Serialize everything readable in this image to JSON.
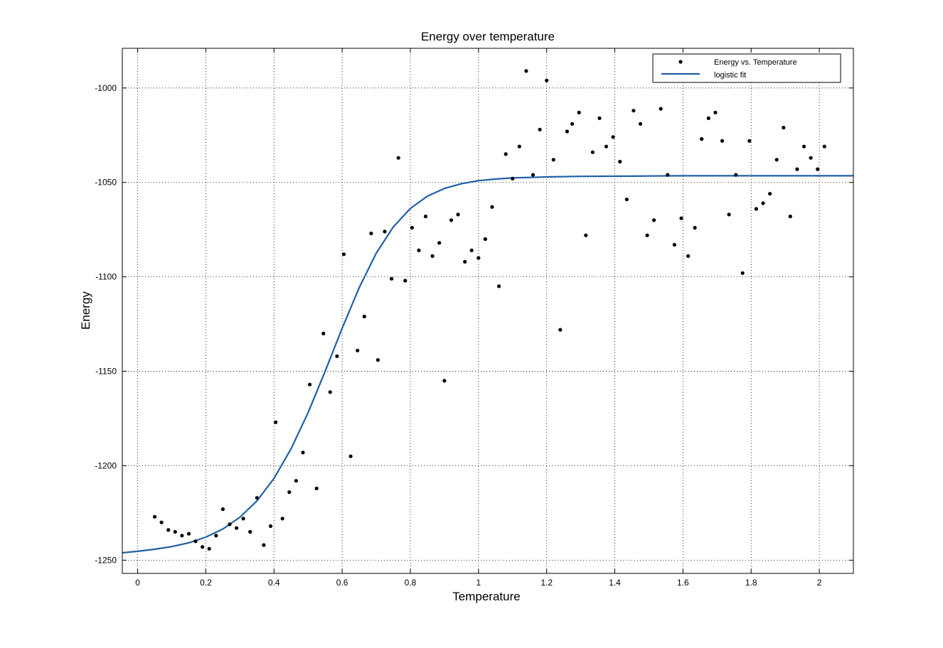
{
  "chart_data": {
    "type": "scatter",
    "title": "Energy over temperature",
    "xlabel": "Temperature",
    "ylabel": "Energy",
    "xlim": [
      -0.045,
      2.1
    ],
    "ylim": [
      -1257,
      -979
    ],
    "xticks": [
      0,
      0.2,
      0.4,
      0.6,
      0.8,
      1,
      1.2,
      1.4,
      1.6,
      1.8,
      2
    ],
    "xtick_labels": [
      "0",
      "0.2",
      "0.4",
      "0.6",
      "0.8",
      "1",
      "1.2",
      "1.4",
      "1.6",
      "1.8",
      "2"
    ],
    "yticks": [
      -1250,
      -1200,
      -1150,
      -1100,
      -1050,
      -1000
    ],
    "ytick_labels": [
      "-1250",
      "-1200",
      "-1150",
      "-1100",
      "-1050",
      "-1000"
    ],
    "grid": true,
    "legend_position": "top-right",
    "series": [
      {
        "name": "Energy vs. Temperature",
        "kind": "scatter",
        "color": "#000000",
        "points": [
          [
            0.05,
            -1227
          ],
          [
            0.07,
            -1230
          ],
          [
            0.09,
            -1234
          ],
          [
            0.11,
            -1235
          ],
          [
            0.13,
            -1237
          ],
          [
            0.15,
            -1236
          ],
          [
            0.17,
            -1240
          ],
          [
            0.19,
            -1243
          ],
          [
            0.21,
            -1244
          ],
          [
            0.23,
            -1237
          ],
          [
            0.25,
            -1223
          ],
          [
            0.27,
            -1231
          ],
          [
            0.29,
            -1233
          ],
          [
            0.31,
            -1228
          ],
          [
            0.33,
            -1235
          ],
          [
            0.35,
            -1217
          ],
          [
            0.37,
            -1242
          ],
          [
            0.39,
            -1232
          ],
          [
            0.405,
            -1177
          ],
          [
            0.425,
            -1228
          ],
          [
            0.445,
            -1214
          ],
          [
            0.465,
            -1208
          ],
          [
            0.485,
            -1193
          ],
          [
            0.505,
            -1157
          ],
          [
            0.525,
            -1212
          ],
          [
            0.545,
            -1130
          ],
          [
            0.565,
            -1161
          ],
          [
            0.585,
            -1142
          ],
          [
            0.605,
            -1088
          ],
          [
            0.625,
            -1195
          ],
          [
            0.645,
            -1139
          ],
          [
            0.665,
            -1121
          ],
          [
            0.685,
            -1077
          ],
          [
            0.705,
            -1144
          ],
          [
            0.725,
            -1076
          ],
          [
            0.745,
            -1101
          ],
          [
            0.765,
            -1037
          ],
          [
            0.785,
            -1102
          ],
          [
            0.805,
            -1074
          ],
          [
            0.825,
            -1086
          ],
          [
            0.845,
            -1068
          ],
          [
            0.865,
            -1089
          ],
          [
            0.885,
            -1082
          ],
          [
            0.9,
            -1155
          ],
          [
            0.92,
            -1070
          ],
          [
            0.94,
            -1067
          ],
          [
            0.96,
            -1092
          ],
          [
            0.98,
            -1086
          ],
          [
            1.0,
            -1090
          ],
          [
            1.02,
            -1080
          ],
          [
            1.04,
            -1063
          ],
          [
            1.06,
            -1105
          ],
          [
            1.08,
            -1035
          ],
          [
            1.1,
            -1048
          ],
          [
            1.12,
            -1031
          ],
          [
            1.14,
            -991
          ],
          [
            1.16,
            -1046
          ],
          [
            1.18,
            -1022
          ],
          [
            1.2,
            -996
          ],
          [
            1.22,
            -1038
          ],
          [
            1.24,
            -1128
          ],
          [
            1.26,
            -1023
          ],
          [
            1.275,
            -1019
          ],
          [
            1.295,
            -1013
          ],
          [
            1.315,
            -1078
          ],
          [
            1.335,
            -1034
          ],
          [
            1.355,
            -1016
          ],
          [
            1.375,
            -1031
          ],
          [
            1.395,
            -1026
          ],
          [
            1.415,
            -1039
          ],
          [
            1.435,
            -1059
          ],
          [
            1.455,
            -1012
          ],
          [
            1.475,
            -1019
          ],
          [
            1.495,
            -1078
          ],
          [
            1.515,
            -1070
          ],
          [
            1.535,
            -1011
          ],
          [
            1.555,
            -1046
          ],
          [
            1.575,
            -1083
          ],
          [
            1.595,
            -1069
          ],
          [
            1.615,
            -1089
          ],
          [
            1.635,
            -1074
          ],
          [
            1.655,
            -1027
          ],
          [
            1.675,
            -1016
          ],
          [
            1.695,
            -1013
          ],
          [
            1.715,
            -1028
          ],
          [
            1.735,
            -1067
          ],
          [
            1.755,
            -1046
          ],
          [
            1.775,
            -1098
          ],
          [
            1.795,
            -1028
          ],
          [
            1.815,
            -1064
          ],
          [
            1.835,
            -1061
          ],
          [
            1.855,
            -1056
          ],
          [
            1.875,
            -1038
          ],
          [
            1.895,
            -1021
          ],
          [
            1.915,
            -1068
          ],
          [
            1.935,
            -1043
          ],
          [
            1.955,
            -1031
          ],
          [
            1.975,
            -1037
          ],
          [
            1.995,
            -1043
          ],
          [
            2.015,
            -1031
          ]
        ]
      },
      {
        "name": "logistic fit",
        "kind": "line",
        "color": "#1f5fa8",
        "points": [
          [
            -0.045,
            -1246.1
          ],
          [
            0.0,
            -1245.3
          ],
          [
            0.05,
            -1244.2
          ],
          [
            0.1,
            -1242.8
          ],
          [
            0.15,
            -1240.8
          ],
          [
            0.2,
            -1237.8
          ],
          [
            0.25,
            -1233.5
          ],
          [
            0.3,
            -1227.3
          ],
          [
            0.35,
            -1218.6
          ],
          [
            0.4,
            -1206.7
          ],
          [
            0.45,
            -1191.1
          ],
          [
            0.5,
            -1171.9
          ],
          [
            0.55,
            -1150.0
          ],
          [
            0.6,
            -1127.2
          ],
          [
            0.65,
            -1105.7
          ],
          [
            0.7,
            -1087.5
          ],
          [
            0.75,
            -1073.6
          ],
          [
            0.8,
            -1063.8
          ],
          [
            0.85,
            -1057.3
          ],
          [
            0.9,
            -1053.2
          ],
          [
            0.95,
            -1050.7
          ],
          [
            1.0,
            -1049.1
          ],
          [
            1.05,
            -1048.2
          ],
          [
            1.1,
            -1047.6
          ],
          [
            1.2,
            -1047.1
          ],
          [
            1.3,
            -1046.8
          ],
          [
            1.4,
            -1046.7
          ],
          [
            1.5,
            -1046.6
          ],
          [
            1.6,
            -1046.5
          ],
          [
            1.7,
            -1046.5
          ],
          [
            1.8,
            -1046.5
          ],
          [
            1.9,
            -1046.5
          ],
          [
            2.0,
            -1046.5
          ],
          [
            2.1,
            -1046.5
          ]
        ]
      }
    ]
  }
}
